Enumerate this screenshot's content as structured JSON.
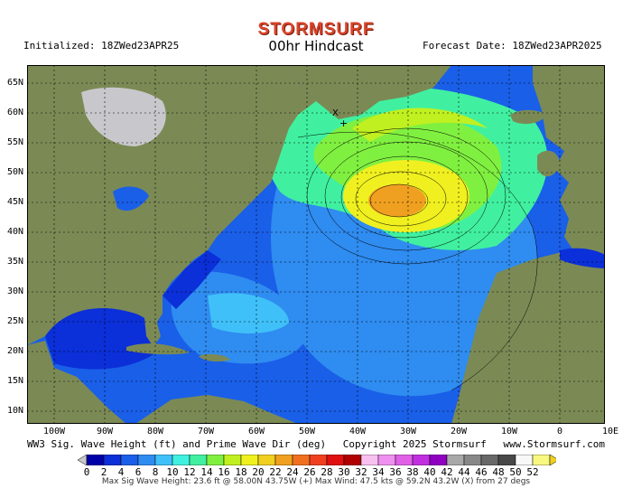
{
  "brand": "STORMSURF",
  "subtitle": "00hr Hindcast",
  "initialized": "Initialized: 18ZWed23APR25",
  "forecast_date": "Forecast Date: 18ZWed23APR2025",
  "lat_labels": [
    "65N",
    "60N",
    "55N",
    "50N",
    "45N",
    "40N",
    "35N",
    "30N",
    "25N",
    "20N",
    "15N",
    "10N"
  ],
  "lon_labels": [
    "100W",
    "90W",
    "80W",
    "70W",
    "60W",
    "50W",
    "40W",
    "30W",
    "20W",
    "10W",
    "0",
    "10E"
  ],
  "credit": {
    "left": "WW3 Sig. Wave Height (ft) and Prime Wave Dir (deg)",
    "mid": "Copyright 2025 Stormsurf",
    "right": "www.Stormsurf.com"
  },
  "scale": {
    "labels": [
      "0",
      "2",
      "4",
      "6",
      "8",
      "10",
      "12",
      "14",
      "16",
      "18",
      "20",
      "22",
      "24",
      "26",
      "28",
      "30",
      "32",
      "34",
      "36",
      "38",
      "40",
      "42",
      "44",
      "46",
      "48",
      "50",
      "52"
    ],
    "colors": [
      "#0000a8",
      "#0b2fd8",
      "#1a5fe8",
      "#2f8cf0",
      "#40c0f8",
      "#40f0e0",
      "#40f0a0",
      "#80f040",
      "#c0f020",
      "#f0f020",
      "#f0d020",
      "#f0a020",
      "#f07020",
      "#f04020",
      "#e01010",
      "#b00000",
      "#f8c0f0",
      "#f090f0",
      "#e060e8",
      "#c030e0",
      "#9000c0",
      "#a8a8a8",
      "#888888",
      "#686868",
      "#484848",
      "#f8f8f8",
      "#f8f880"
    ]
  },
  "footer": "Max Sig Wave Height: 23.6 ft @ 58.00N 43.75W (+)   Max Wind: 47.5 kts @ 59.2N 43.2W (X) from 27   degs"
}
